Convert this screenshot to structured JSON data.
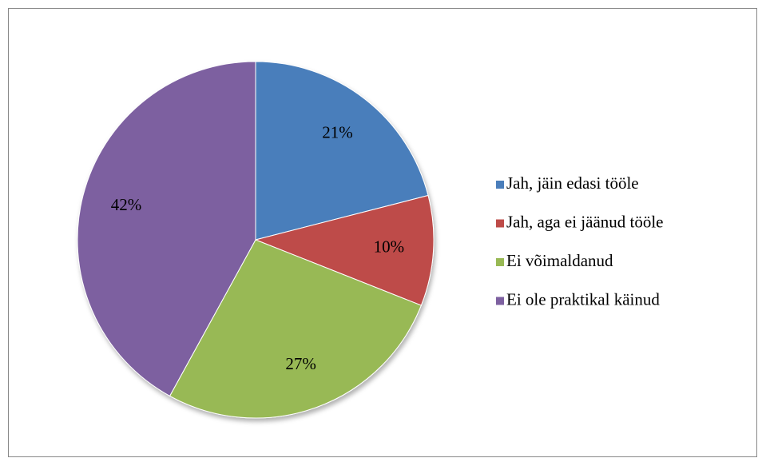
{
  "chart_data": {
    "type": "pie",
    "categories": [
      "Jah, jäin edasi tööle",
      "Jah, aga ei jäänud tööle",
      "Ei võimaldanud",
      "Ei ole praktikal käinud"
    ],
    "values": [
      21,
      10,
      27,
      42
    ],
    "value_labels": [
      "21%",
      "10%",
      "27%",
      "42%"
    ],
    "colors": [
      "#4a7ebb",
      "#be4b48",
      "#98b954",
      "#7d60a0"
    ],
    "legend": "right"
  }
}
